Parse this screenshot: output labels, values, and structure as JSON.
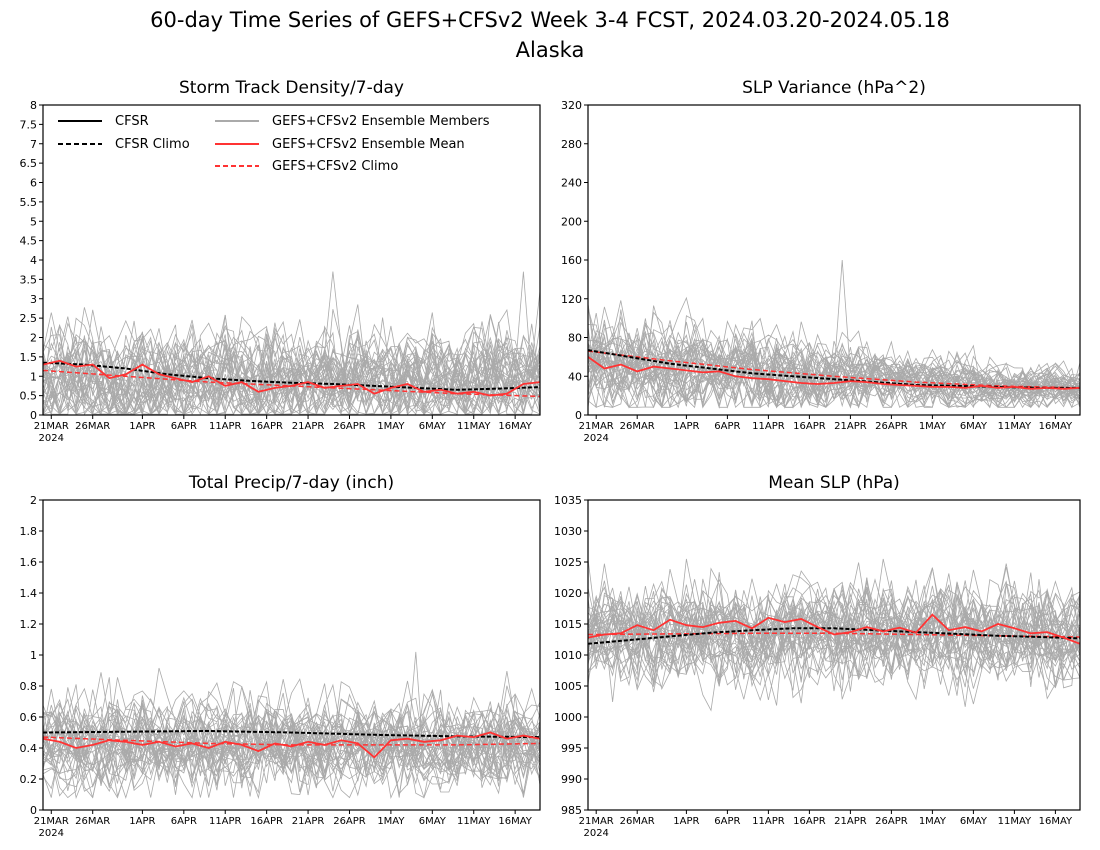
{
  "figure": {
    "title_line1": "60-day Time Series of GEFS+CFSv2 Week 3-4 FCST, 2024.03.20-2024.05.18",
    "title_line2": "Alaska"
  },
  "legend": {
    "cfsr": "CFSR",
    "cfsr_climo": "CFSR Climo",
    "members": "GEFS+CFSv2 Ensemble Members",
    "mean": "GEFS+CFSv2 Ensemble Mean",
    "climo": "GEFS+CFSv2 Climo",
    "colors": {
      "cfsr": "#000000",
      "members": "#aaaaaa",
      "mean": "#ff3333"
    }
  },
  "x_axis": {
    "year_label": "2024",
    "ticks": [
      {
        "day": 1,
        "label": "21MAR"
      },
      {
        "day": 6,
        "label": "26MAR"
      },
      {
        "day": 12,
        "label": "1APR"
      },
      {
        "day": 17,
        "label": "6APR"
      },
      {
        "day": 22,
        "label": "11APR"
      },
      {
        "day": 27,
        "label": "16APR"
      },
      {
        "day": 32,
        "label": "21APR"
      },
      {
        "day": 37,
        "label": "26APR"
      },
      {
        "day": 42,
        "label": "1MAY"
      },
      {
        "day": 47,
        "label": "6MAY"
      },
      {
        "day": 52,
        "label": "11MAY"
      },
      {
        "day": 57,
        "label": "16MAY"
      }
    ]
  },
  "chart_data": [
    {
      "type": "line",
      "title": "Storm Track Density/7-day",
      "ylim": [
        0,
        8
      ],
      "yticks": [
        0,
        0.5,
        1,
        1.5,
        2,
        2.5,
        3,
        3.5,
        4,
        4.5,
        5,
        5.5,
        6,
        6.5,
        7,
        7.5,
        8
      ],
      "ytick_labels": [
        "0",
        "0.5",
        "1",
        "1.5",
        "2",
        "2.5",
        "3",
        "3.5",
        "4",
        "4.5",
        "5",
        "5.5",
        "6",
        "6.5",
        "7",
        "7.5",
        "8"
      ],
      "xlim": [
        0,
        60
      ],
      "members": {
        "count": 40,
        "base": 0.9,
        "spread": 0.55,
        "peak": 3.7,
        "floor": 0.02,
        "seed": 11
      },
      "cfsr_climo": {
        "x": [
          0,
          5,
          10,
          15,
          20,
          25,
          30,
          35,
          40,
          45,
          50,
          55,
          60
        ],
        "y": [
          1.35,
          1.3,
          1.2,
          1.05,
          0.95,
          0.88,
          0.83,
          0.8,
          0.75,
          0.7,
          0.65,
          0.68,
          0.72
        ]
      },
      "ensemble_mean": {
        "x": [
          0,
          2,
          4,
          6,
          8,
          10,
          12,
          14,
          16,
          18,
          20,
          22,
          24,
          26,
          28,
          30,
          32,
          34,
          36,
          38,
          40,
          42,
          44,
          46,
          48,
          50,
          52,
          54,
          56,
          58,
          60
        ],
        "y": [
          1.3,
          1.4,
          1.25,
          1.3,
          0.95,
          1.05,
          1.3,
          1.05,
          0.95,
          0.85,
          1.0,
          0.75,
          0.85,
          0.6,
          0.7,
          0.75,
          0.85,
          0.7,
          0.75,
          0.8,
          0.55,
          0.7,
          0.8,
          0.6,
          0.65,
          0.55,
          0.6,
          0.5,
          0.55,
          0.8,
          0.85
        ]
      },
      "climo": {
        "x": [
          0,
          10,
          20,
          30,
          40,
          50,
          60
        ],
        "y": [
          1.15,
          1.0,
          0.85,
          0.75,
          0.65,
          0.55,
          0.48
        ]
      }
    },
    {
      "type": "line",
      "title": "SLP Variance (hPa^2)",
      "ylim": [
        0,
        320
      ],
      "yticks": [
        0,
        40,
        80,
        120,
        160,
        200,
        240,
        280,
        320
      ],
      "ytick_labels": [
        "0",
        "40",
        "80",
        "120",
        "160",
        "200",
        "240",
        "280",
        "320"
      ],
      "xlim": [
        0,
        60
      ],
      "members": {
        "count": 40,
        "base_start": 52,
        "base_end": 27,
        "spread_start": 22,
        "spread_end": 8,
        "peak": 160,
        "floor": 8,
        "seed": 23
      },
      "cfsr_climo": {
        "x": [
          0,
          5,
          10,
          15,
          20,
          25,
          30,
          35,
          40,
          45,
          50,
          55,
          60
        ],
        "y": [
          67,
          60,
          53,
          48,
          43,
          40,
          37,
          34,
          31,
          30,
          29,
          28,
          28
        ]
      },
      "ensemble_mean": {
        "x": [
          0,
          2,
          4,
          6,
          8,
          10,
          12,
          14,
          16,
          18,
          20,
          22,
          24,
          26,
          28,
          30,
          32,
          34,
          36,
          38,
          40,
          42,
          44,
          46,
          48,
          50,
          52,
          54,
          56,
          58,
          60
        ],
        "y": [
          60,
          48,
          52,
          45,
          50,
          48,
          46,
          44,
          45,
          40,
          38,
          37,
          35,
          33,
          32,
          33,
          35,
          34,
          32,
          31,
          30,
          29,
          29,
          28,
          30,
          28,
          29,
          27,
          28,
          27,
          28
        ]
      },
      "climo": {
        "x": [
          0,
          10,
          20,
          30,
          40,
          50,
          60
        ],
        "y": [
          66,
          56,
          47,
          40,
          34,
          30,
          28
        ]
      }
    },
    {
      "type": "line",
      "title": "Total Precip/7-day (inch)",
      "ylim": [
        0,
        2
      ],
      "yticks": [
        0,
        0.2,
        0.4,
        0.6,
        0.8,
        1,
        1.2,
        1.4,
        1.6,
        1.8,
        2
      ],
      "ytick_labels": [
        "0",
        "0.2",
        "0.4",
        "0.6",
        "0.8",
        "1",
        "1.2",
        "1.4",
        "1.6",
        "1.8",
        "2"
      ],
      "xlim": [
        0,
        60
      ],
      "members": {
        "count": 40,
        "base": 0.43,
        "spread": 0.12,
        "peak": 1.02,
        "floor": 0.08,
        "seed": 37
      },
      "cfsr_climo": {
        "x": [
          0,
          10,
          20,
          30,
          40,
          50,
          60
        ],
        "y": [
          0.5,
          0.505,
          0.51,
          0.5,
          0.485,
          0.475,
          0.47
        ]
      },
      "ensemble_mean": {
        "x": [
          0,
          2,
          4,
          6,
          8,
          10,
          12,
          14,
          16,
          18,
          20,
          22,
          24,
          26,
          28,
          30,
          32,
          34,
          36,
          38,
          40,
          42,
          44,
          46,
          48,
          50,
          52,
          54,
          56,
          58,
          60
        ],
        "y": [
          0.46,
          0.44,
          0.4,
          0.42,
          0.45,
          0.44,
          0.42,
          0.44,
          0.41,
          0.43,
          0.4,
          0.44,
          0.42,
          0.38,
          0.43,
          0.41,
          0.44,
          0.42,
          0.45,
          0.43,
          0.34,
          0.45,
          0.46,
          0.44,
          0.45,
          0.48,
          0.47,
          0.5,
          0.46,
          0.48,
          0.46
        ]
      },
      "climo": {
        "x": [
          0,
          10,
          20,
          30,
          40,
          50,
          60
        ],
        "y": [
          0.47,
          0.45,
          0.43,
          0.42,
          0.42,
          0.42,
          0.43
        ]
      }
    },
    {
      "type": "line",
      "title": "Mean SLP (hPa)",
      "ylim": [
        985,
        1035
      ],
      "yticks": [
        985,
        990,
        995,
        1000,
        1005,
        1010,
        1015,
        1020,
        1025,
        1030,
        1035
      ],
      "ytick_labels": [
        "985",
        "990",
        "995",
        "1000",
        "1005",
        "1010",
        "1015",
        "1020",
        "1025",
        "1030",
        "1035"
      ],
      "xlim": [
        0,
        60
      ],
      "members": {
        "count": 40,
        "base": 1013.5,
        "spread": 3.3,
        "peak": 1025.5,
        "floor": 1001,
        "seed": 51
      },
      "cfsr_climo": {
        "x": [
          0,
          5,
          10,
          15,
          20,
          25,
          30,
          35,
          40,
          45,
          50,
          55,
          60
        ],
        "y": [
          1011.8,
          1012.4,
          1013.0,
          1013.6,
          1014.0,
          1014.3,
          1014.3,
          1014.0,
          1013.7,
          1013.4,
          1013.1,
          1012.9,
          1012.7
        ]
      },
      "ensemble_mean": {
        "x": [
          0,
          2,
          4,
          6,
          8,
          10,
          12,
          14,
          16,
          18,
          20,
          22,
          24,
          26,
          28,
          30,
          32,
          34,
          36,
          38,
          40,
          42,
          44,
          46,
          48,
          50,
          52,
          54,
          56,
          58,
          60
        ],
        "y": [
          1012.8,
          1013.3,
          1013.5,
          1014.8,
          1014.0,
          1015.7,
          1014.8,
          1014.5,
          1015.2,
          1015.5,
          1014.3,
          1016.0,
          1015.3,
          1015.8,
          1014.5,
          1013.3,
          1013.7,
          1014.5,
          1013.8,
          1014.4,
          1013.6,
          1016.5,
          1014.0,
          1014.5,
          1013.8,
          1015.0,
          1014.3,
          1013.5,
          1013.7,
          1012.8,
          1011.8
        ]
      },
      "climo": {
        "x": [
          0,
          10,
          20,
          30,
          40,
          50,
          60
        ],
        "y": [
          1013.3,
          1013.4,
          1013.5,
          1013.5,
          1013.3,
          1013.1,
          1012.9
        ]
      }
    }
  ]
}
